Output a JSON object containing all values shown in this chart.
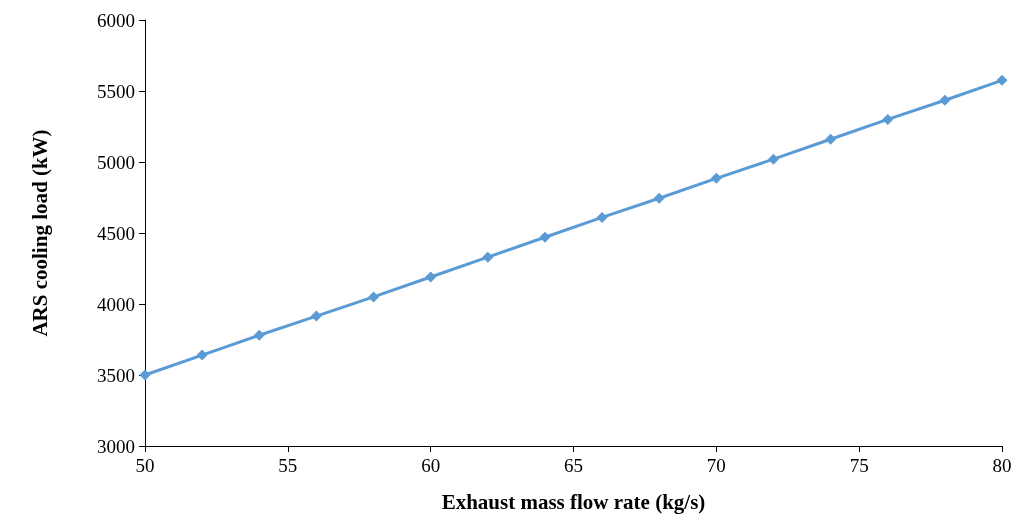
{
  "chart_data": {
    "type": "line",
    "xlabel": "Exhaust mass flow rate (kg/s)",
    "ylabel": "ARS cooling load (kW)",
    "x": [
      50,
      52,
      54,
      56,
      58,
      60,
      62,
      64,
      66,
      68,
      70,
      72,
      74,
      76,
      78,
      80
    ],
    "series": [
      {
        "color": "#5b9bd5",
        "values": [
          3500,
          3640,
          3780,
          3915,
          4050,
          4190,
          4330,
          4470,
          4610,
          4745,
          4885,
          5020,
          5160,
          5300,
          5435,
          5575
        ]
      }
    ],
    "xlim": [
      50,
      80
    ],
    "xticks": [
      50,
      55,
      60,
      65,
      70,
      75,
      80
    ],
    "ylim": [
      3000,
      6000
    ],
    "yticks": [
      3000,
      3500,
      4000,
      4500,
      5000,
      5500,
      6000
    ],
    "grid": false,
    "marker": "diamond",
    "line_style": "solid"
  }
}
